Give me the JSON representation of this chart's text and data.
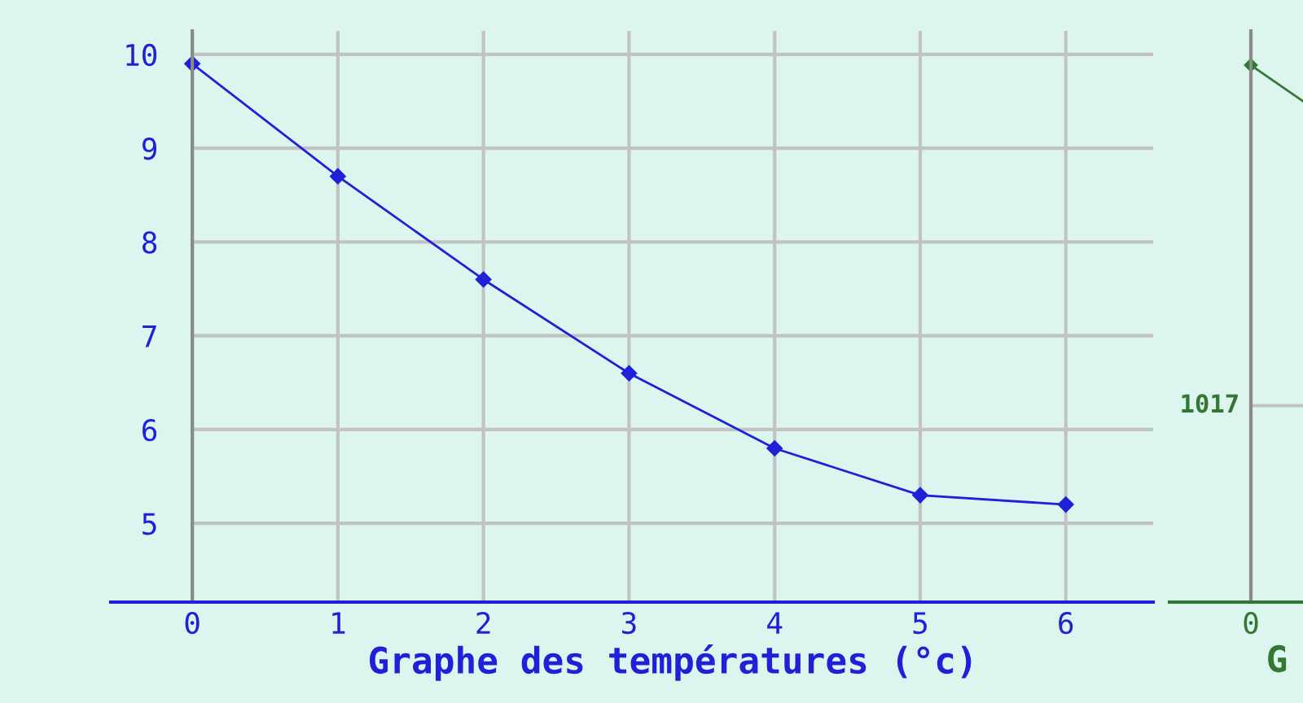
{
  "chart_data": [
    {
      "type": "line",
      "xlabel": "Graphe des températures (°c)",
      "x": [
        0,
        1,
        2,
        3,
        4,
        5,
        6
      ],
      "series": [
        {
          "color": "#2020d8",
          "values": [
            9.9,
            8.7,
            7.6,
            6.6,
            5.8,
            5.3,
            5.2
          ]
        }
      ],
      "xlim": [
        -0.56,
        6.6
      ],
      "ylim": [
        4.16,
        10.25
      ],
      "xticks": [
        0,
        1,
        2,
        3,
        4,
        5,
        6
      ],
      "yticks": [
        5,
        6,
        7,
        8,
        9,
        10
      ],
      "grid": true,
      "marker": "diamond",
      "line_style": "solid"
    },
    {
      "type": "other",
      "xlabel": "G",
      "categories": [
        "0"
      ],
      "annotations": [
        "1017"
      ]
    }
  ]
}
